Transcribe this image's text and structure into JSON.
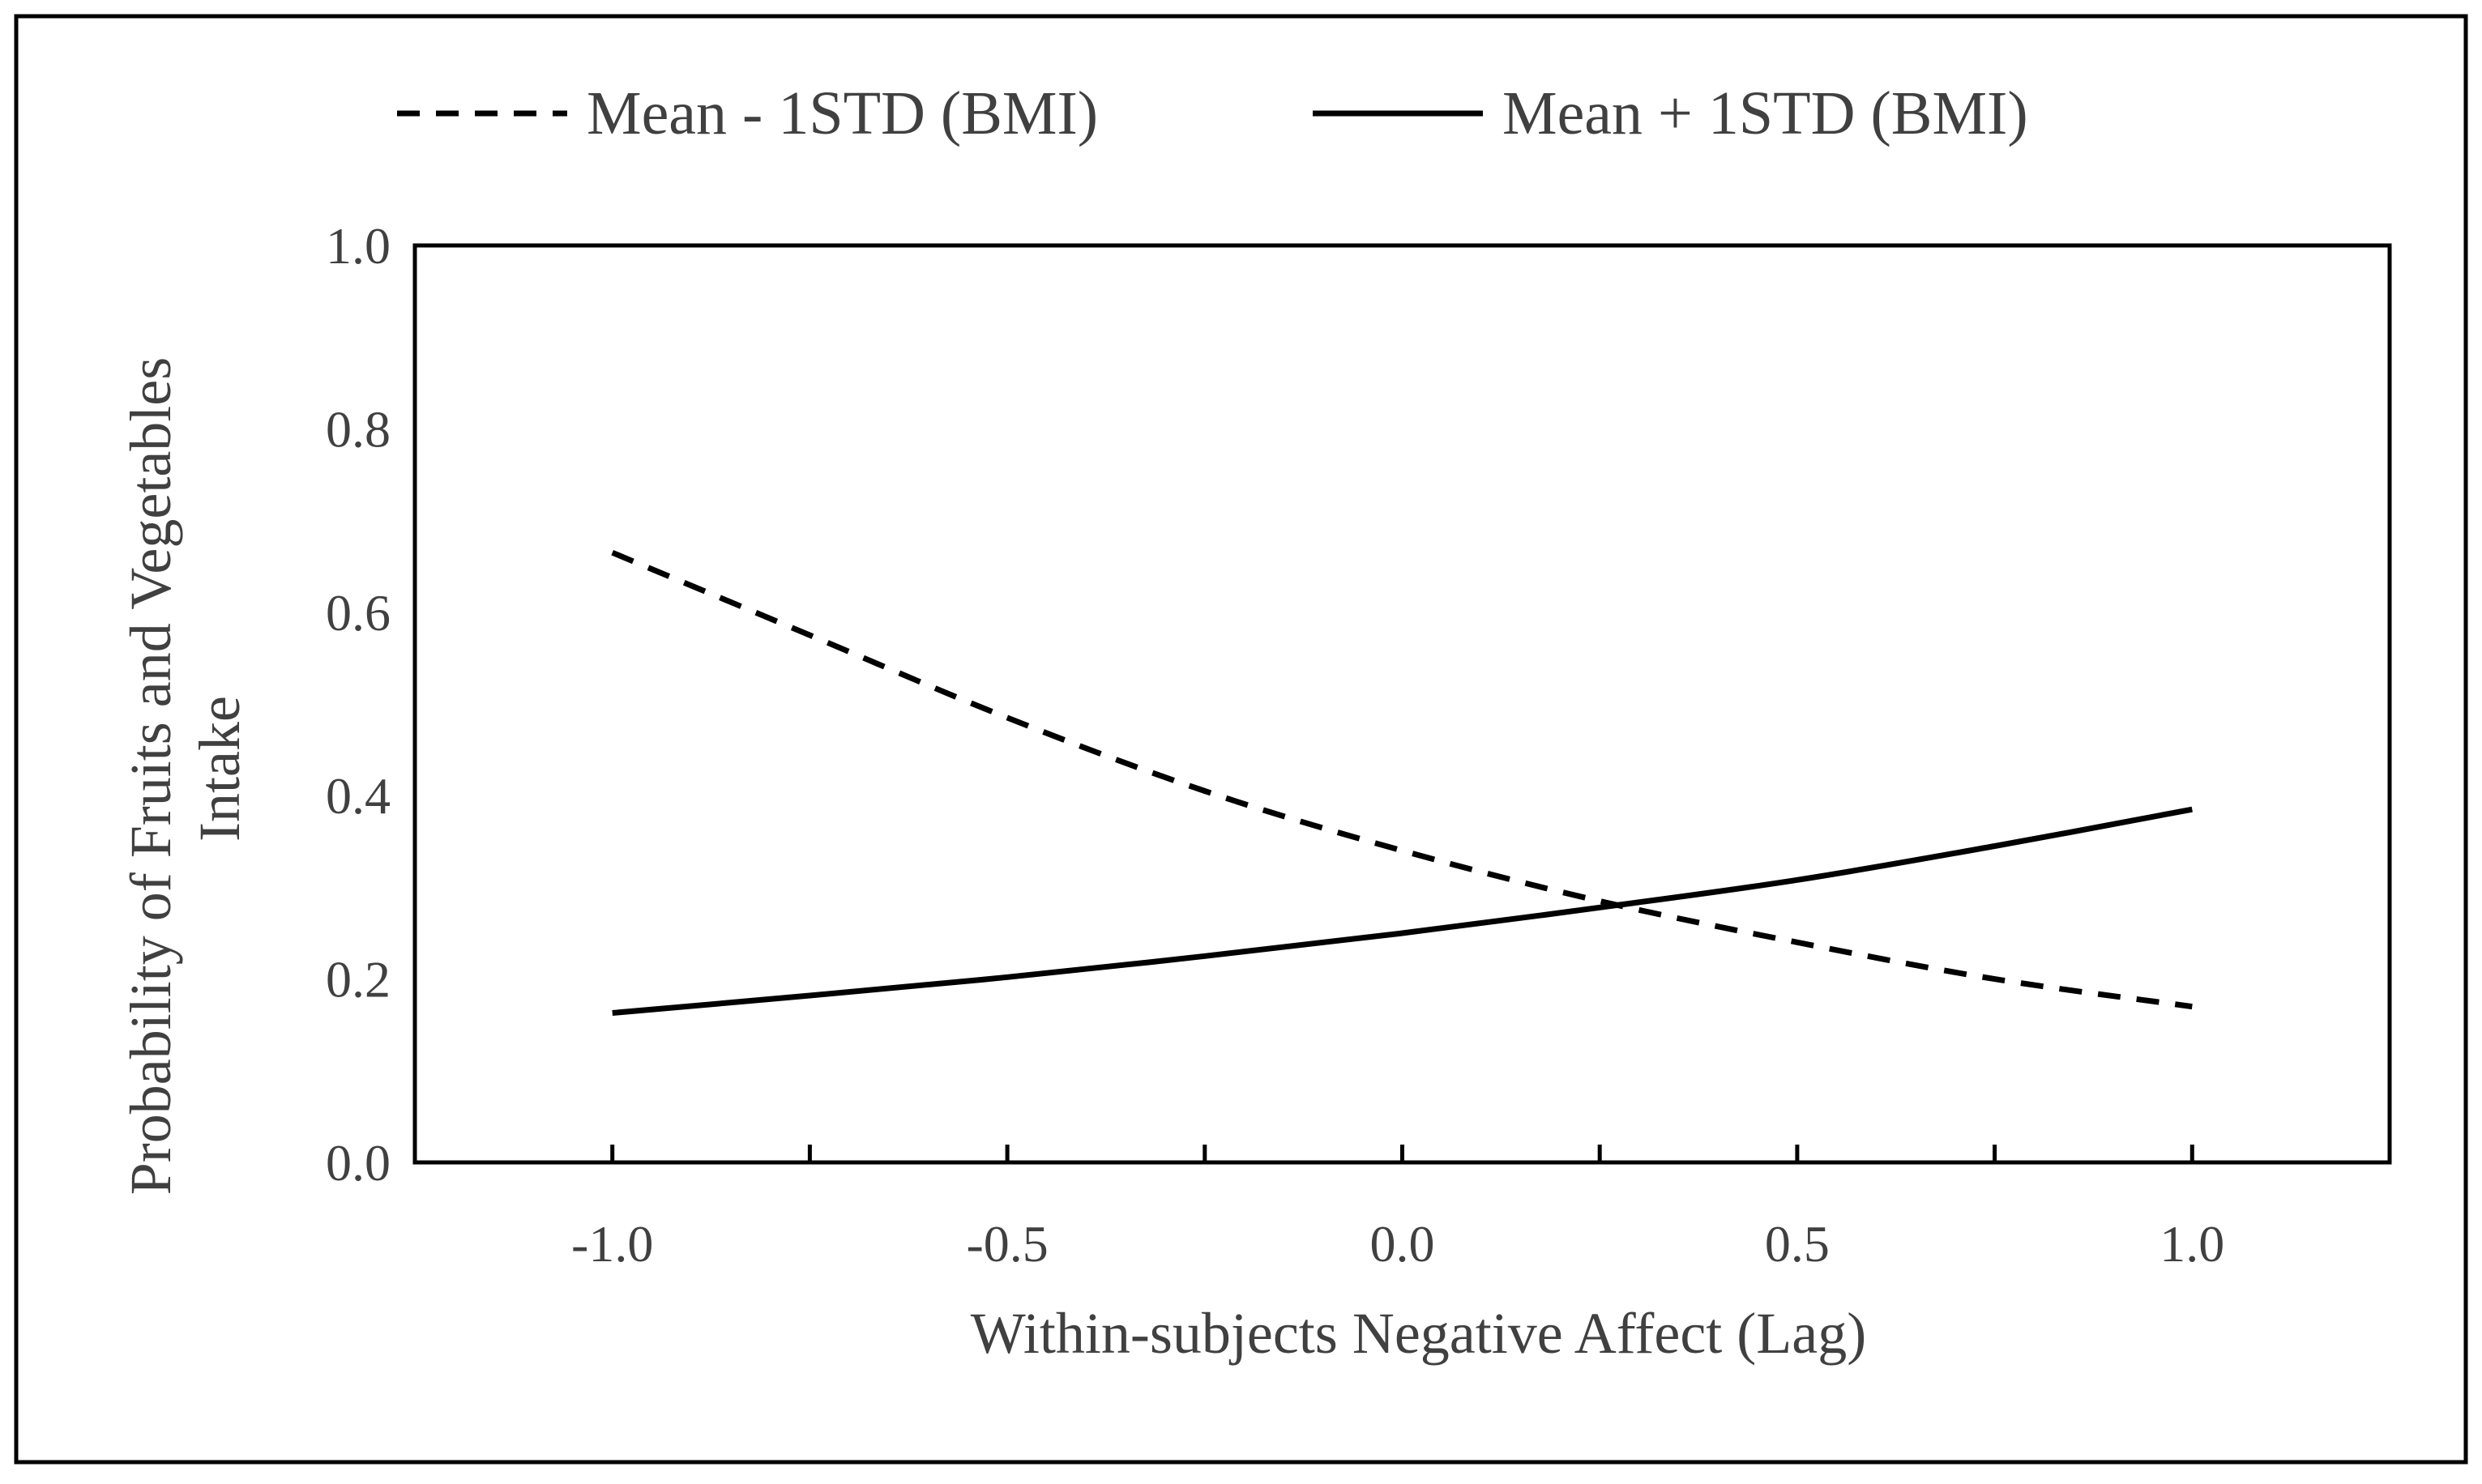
{
  "chart_data": {
    "type": "line",
    "xlabel": "Within-subjects Negative Affect (Lag)",
    "ylabel_lines": [
      "Probability of Fruits and Vegetables",
      "Intake"
    ],
    "xlim": [
      -1.25,
      1.25
    ],
    "ylim": [
      0.0,
      1.0
    ],
    "x_ticks": [
      -1.0,
      -0.5,
      0.0,
      0.5,
      1.0
    ],
    "x_tick_labels": [
      "-1.0",
      "-0.5",
      "0.0",
      "0.5",
      "1.0"
    ],
    "y_ticks": [
      0.0,
      0.2,
      0.4,
      0.6,
      0.8,
      1.0
    ],
    "y_tick_labels": [
      "0.0",
      "0.2",
      "0.4",
      "0.6",
      "0.8",
      "1.0"
    ],
    "grid": false,
    "legend_position": "top",
    "series": [
      {
        "name": "Mean - 1STD (BMI)",
        "style": "dashed",
        "color": "#000000",
        "x": [
          -1.0,
          -0.75,
          -0.5,
          -0.25,
          0.0,
          0.25,
          0.5,
          0.75,
          1.0
        ],
        "y": [
          0.665,
          0.575,
          0.485,
          0.405,
          0.34,
          0.285,
          0.24,
          0.2,
          0.17
        ]
      },
      {
        "name": "Mean + 1STD (BMI)",
        "style": "solid",
        "color": "#000000",
        "x": [
          -1.0,
          -0.75,
          -0.5,
          -0.25,
          0.0,
          0.25,
          0.5,
          0.75,
          1.0
        ],
        "y": [
          0.163,
          0.182,
          0.202,
          0.225,
          0.25,
          0.278,
          0.308,
          0.345,
          0.385
        ]
      }
    ]
  }
}
